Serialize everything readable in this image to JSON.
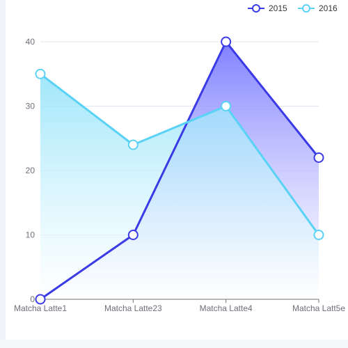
{
  "chart_data": {
    "type": "line",
    "categories": [
      "Matcha Latte1",
      "Matcha Latte23",
      "Matcha Latte4",
      "Matcha Latt5e"
    ],
    "series": [
      {
        "name": "2015",
        "values": [
          0,
          10,
          40,
          22
        ],
        "color": "#3a3ae6",
        "area": "#7a7aff"
      },
      {
        "name": "2016",
        "values": [
          35,
          24,
          30,
          10
        ],
        "color": "#59d2f5",
        "area": "#8fe2fa"
      }
    ],
    "ylim": [
      0,
      40
    ],
    "yticks": [
      0,
      10,
      20,
      30,
      40
    ],
    "grid": true,
    "legend": "top-right",
    "smooth": false
  }
}
